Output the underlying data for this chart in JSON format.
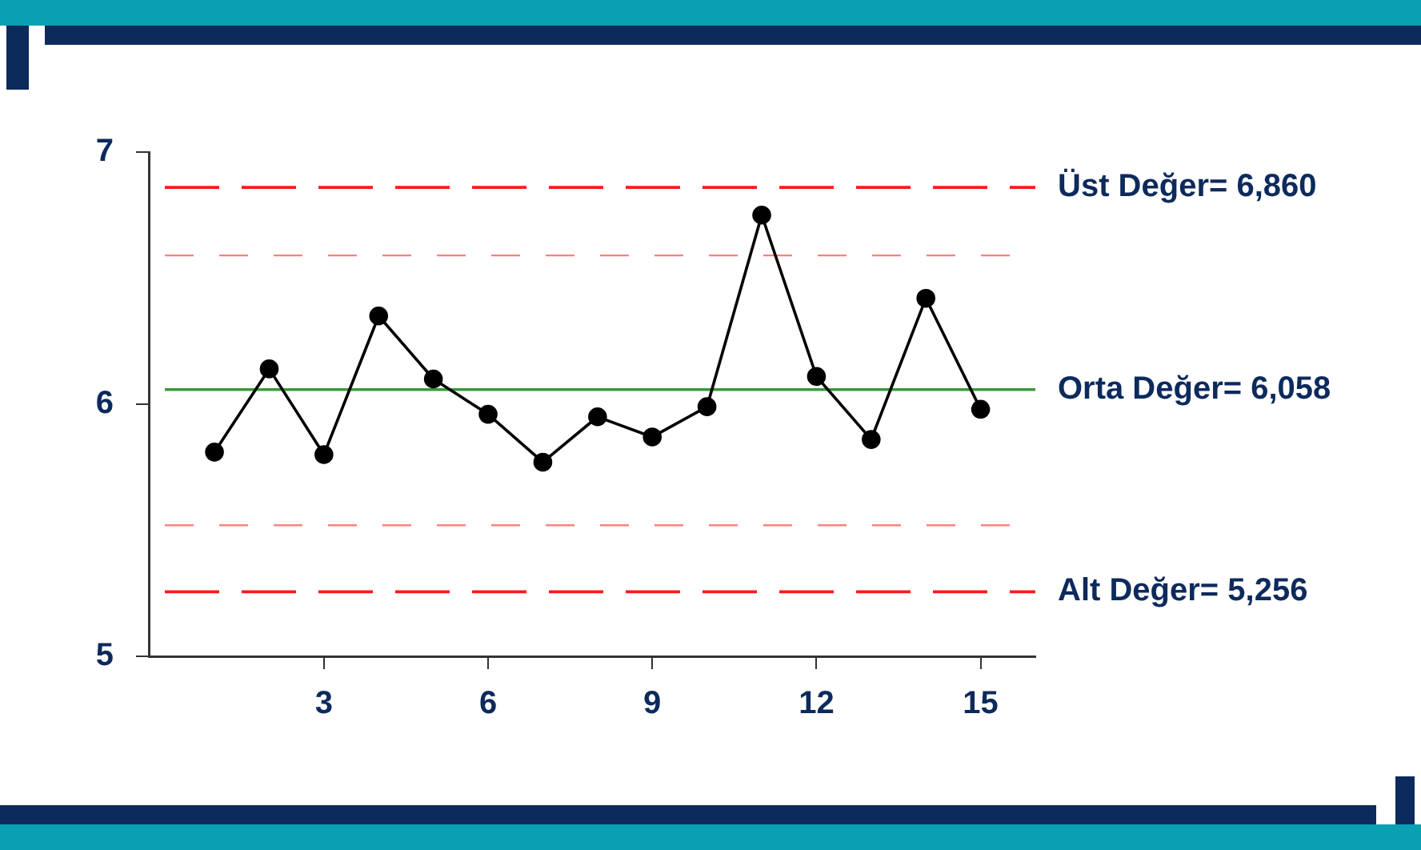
{
  "chart_data": {
    "type": "line",
    "x": [
      1,
      2,
      3,
      4,
      5,
      6,
      7,
      8,
      9,
      10,
      11,
      12,
      13,
      14,
      15
    ],
    "series": [
      {
        "color": "#000000",
        "values": [
          5.81,
          6.14,
          5.8,
          6.35,
          6.1,
          5.96,
          5.77,
          5.95,
          5.87,
          5.99,
          6.75,
          6.11,
          5.86,
          6.42,
          5.98
        ]
      }
    ],
    "xlim": [
      -0.2,
      16
    ],
    "xticks": [
      3,
      6,
      9,
      12,
      15
    ],
    "ylim": [
      5,
      7
    ],
    "yticks": [
      5,
      6,
      7
    ],
    "ref_lines": [
      {
        "axis": "y",
        "value": 6.86,
        "label": "Üst Değer= 6,860",
        "color": "#ff1a1a",
        "line_style": "dashed"
      },
      {
        "axis": "y",
        "value": 6.59,
        "color": "#ff8080",
        "line_style": "dashed"
      },
      {
        "axis": "y",
        "value": 6.058,
        "label": "Orta Değer= 6,058",
        "color": "#3a9a3a",
        "line_style": "solid"
      },
      {
        "axis": "y",
        "value": 5.52,
        "color": "#ff8080",
        "line_style": "dashed"
      },
      {
        "axis": "y",
        "value": 5.256,
        "label": "Alt Değer= 5,256",
        "color": "#ff1a1a",
        "line_style": "dashed"
      }
    ],
    "grid": false,
    "legend": false,
    "marker": "circle",
    "line_style": "solid"
  }
}
